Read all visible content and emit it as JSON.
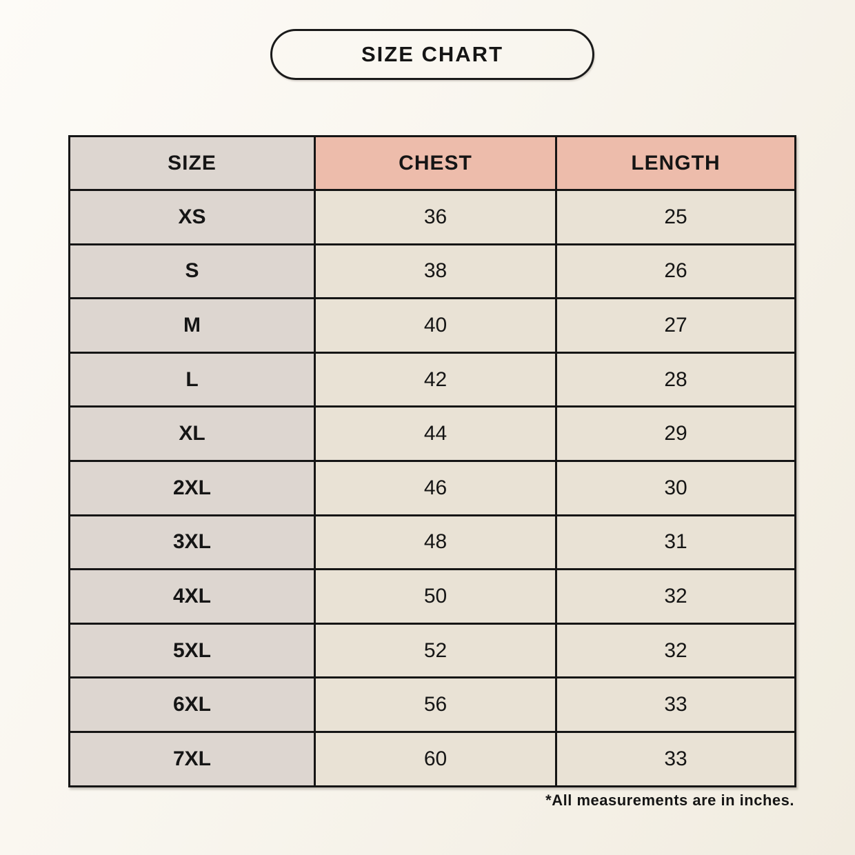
{
  "header": {
    "title": "SIZE CHART"
  },
  "table": {
    "columns": [
      "SIZE",
      "CHEST",
      "LENGTH"
    ],
    "rows": [
      {
        "size": "XS",
        "chest": "36",
        "length": "25"
      },
      {
        "size": "S",
        "chest": "38",
        "length": "26"
      },
      {
        "size": "M",
        "chest": "40",
        "length": "27"
      },
      {
        "size": "L",
        "chest": "42",
        "length": "28"
      },
      {
        "size": "XL",
        "chest": "44",
        "length": "29"
      },
      {
        "size": "2XL",
        "chest": "46",
        "length": "30"
      },
      {
        "size": "3XL",
        "chest": "48",
        "length": "31"
      },
      {
        "size": "4XL",
        "chest": "50",
        "length": "32"
      },
      {
        "size": "5XL",
        "chest": "52",
        "length": "32"
      },
      {
        "size": "6XL",
        "chest": "56",
        "length": "33"
      },
      {
        "size": "7XL",
        "chest": "60",
        "length": "33"
      }
    ]
  },
  "footer": {
    "note": "*All measurements are in inches."
  },
  "colors": {
    "page_background": "#f7f3ec",
    "size_column_background": "#ddd6d0",
    "measure_header_background": "#edbcab",
    "data_cell_background": "#e9e2d5",
    "border": "#151515",
    "text": "#151515"
  },
  "chart_data": {
    "type": "table",
    "title": "SIZE CHART",
    "columns": [
      "SIZE",
      "CHEST",
      "LENGTH"
    ],
    "rows": [
      [
        "XS",
        36,
        25
      ],
      [
        "S",
        38,
        26
      ],
      [
        "M",
        40,
        27
      ],
      [
        "L",
        42,
        28
      ],
      [
        "XL",
        44,
        29
      ],
      [
        "2XL",
        46,
        30
      ],
      [
        "3XL",
        48,
        31
      ],
      [
        "4XL",
        50,
        32
      ],
      [
        "5XL",
        52,
        32
      ],
      [
        "6XL",
        56,
        33
      ],
      [
        "7XL",
        60,
        33
      ]
    ],
    "note": "*All measurements are in inches.",
    "units": "inches"
  }
}
